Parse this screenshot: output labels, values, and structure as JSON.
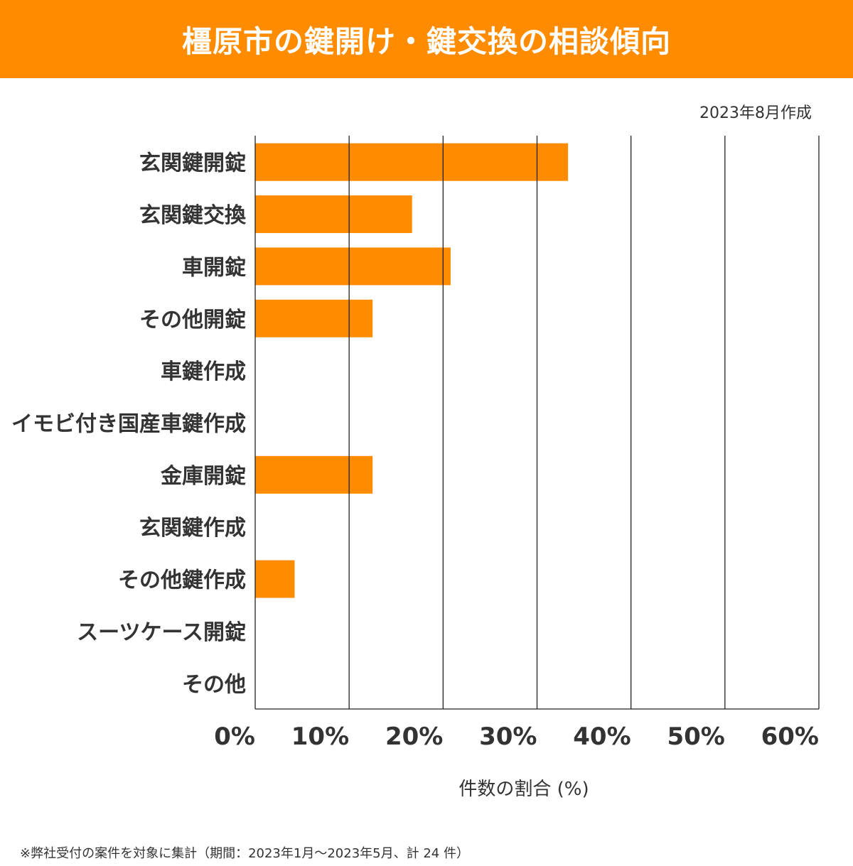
{
  "title": "橿原市の鍵開け・鍵交換の相談傾向",
  "date_note": "2023年8月作成",
  "footnote": "※弊社受付の案件を対象に集計（期間：2023年1月～2023年5月、計 24 件）",
  "colors": {
    "header": "#FF8C00",
    "bar": "#FF8C00"
  },
  "chart_data": {
    "type": "bar",
    "orientation": "horizontal",
    "title": "橿原市の鍵開け・鍵交換の相談傾向",
    "xlabel": "件数の割合 (%)",
    "ylabel": "",
    "xlim": [
      0,
      60
    ],
    "grid": true,
    "categories": [
      "玄関鍵開錠",
      "玄関鍵交換",
      "車開錠",
      "その他開錠",
      "車鍵作成",
      "イモビ付き国産車鍵作成",
      "金庫開錠",
      "玄関鍵作成",
      "その他鍵作成",
      "スーツケース開錠",
      "その他"
    ],
    "values": [
      33.3,
      16.7,
      20.8,
      12.5,
      0,
      0,
      12.5,
      0,
      4.2,
      0,
      0
    ],
    "xticks": [
      "0%",
      "10%",
      "20%",
      "30%",
      "40%",
      "50%",
      "60%"
    ]
  }
}
